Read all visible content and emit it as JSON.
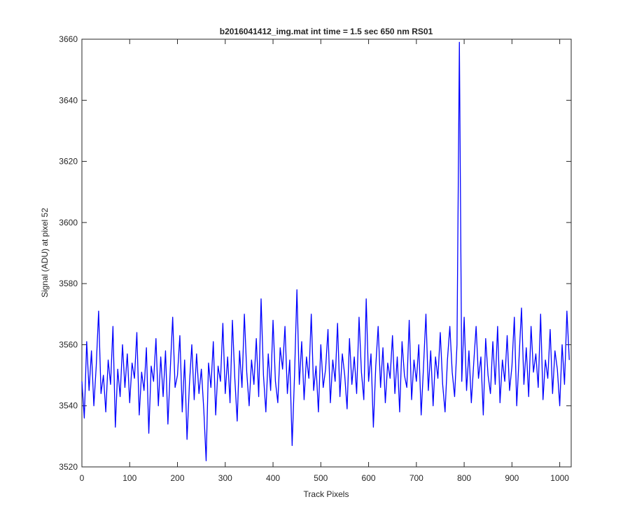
{
  "chart_data": {
    "type": "line",
    "title": "b2016041412_img.mat int time = 1.5 sec  650 nm RS01",
    "xlabel": "Track Pixels",
    "ylabel": "Signal (ADU) at pixel 52",
    "x": [
      0,
      5,
      10,
      15,
      20,
      25,
      30,
      35,
      40,
      45,
      50,
      55,
      60,
      65,
      70,
      75,
      80,
      85,
      90,
      95,
      100,
      105,
      110,
      115,
      120,
      125,
      130,
      135,
      140,
      145,
      150,
      155,
      160,
      165,
      170,
      175,
      180,
      185,
      190,
      195,
      200,
      205,
      210,
      215,
      220,
      225,
      230,
      235,
      240,
      245,
      250,
      255,
      260,
      265,
      270,
      275,
      280,
      285,
      290,
      295,
      300,
      305,
      310,
      315,
      320,
      325,
      330,
      335,
      340,
      345,
      350,
      355,
      360,
      365,
      370,
      375,
      380,
      385,
      390,
      395,
      400,
      405,
      410,
      415,
      420,
      425,
      430,
      435,
      440,
      445,
      450,
      455,
      460,
      465,
      470,
      475,
      480,
      485,
      490,
      495,
      500,
      505,
      510,
      515,
      520,
      525,
      530,
      535,
      540,
      545,
      550,
      555,
      560,
      565,
      570,
      575,
      580,
      585,
      590,
      595,
      600,
      605,
      610,
      615,
      620,
      625,
      630,
      635,
      640,
      645,
      650,
      655,
      660,
      665,
      670,
      675,
      680,
      685,
      690,
      695,
      700,
      705,
      710,
      715,
      720,
      725,
      730,
      735,
      740,
      745,
      750,
      755,
      760,
      765,
      770,
      775,
      780,
      785,
      790,
      795,
      800,
      805,
      810,
      815,
      820,
      825,
      830,
      835,
      840,
      845,
      850,
      855,
      860,
      865,
      870,
      875,
      880,
      885,
      890,
      895,
      900,
      905,
      910,
      915,
      920,
      925,
      930,
      935,
      940,
      945,
      950,
      955,
      960,
      965,
      970,
      975,
      980,
      985,
      990,
      995,
      1000,
      1005,
      1010,
      1015,
      1020
    ],
    "series": [
      {
        "color": "#0000ff",
        "values": [
          3548,
          3536,
          3561,
          3545,
          3558,
          3540,
          3553,
          3571,
          3544,
          3550,
          3538,
          3555,
          3547,
          3566,
          3533,
          3552,
          3543,
          3560,
          3546,
          3557,
          3541,
          3554,
          3549,
          3564,
          3537,
          3551,
          3545,
          3559,
          3531,
          3553,
          3548,
          3562,
          3540,
          3556,
          3543,
          3558,
          3534,
          3552,
          3569,
          3546,
          3550,
          3563,
          3538,
          3555,
          3529,
          3547,
          3560,
          3542,
          3557,
          3544,
          3552,
          3539,
          3522,
          3554,
          3546,
          3561,
          3537,
          3553,
          3548,
          3567,
          3544,
          3556,
          3541,
          3568,
          3549,
          3535,
          3558,
          3546,
          3570,
          3551,
          3540,
          3555,
          3547,
          3562,
          3543,
          3575,
          3550,
          3538,
          3557,
          3545,
          3568,
          3548,
          3541,
          3559,
          3552,
          3566,
          3544,
          3555,
          3527,
          3550,
          3578,
          3547,
          3561,
          3542,
          3556,
          3549,
          3570,
          3545,
          3553,
          3538,
          3560,
          3546,
          3552,
          3565,
          3541,
          3555,
          3548,
          3567,
          3543,
          3557,
          3550,
          3539,
          3562,
          3547,
          3556,
          3544,
          3569,
          3551,
          3542,
          3575,
          3548,
          3557,
          3533,
          3553,
          3566,
          3546,
          3559,
          3541,
          3554,
          3549,
          3563,
          3544,
          3556,
          3538,
          3561,
          3550,
          3546,
          3568,
          3542,
          3555,
          3548,
          3560,
          3537,
          3553,
          3570,
          3545,
          3558,
          3540,
          3556,
          3549,
          3564,
          3547,
          3538,
          3555,
          3566,
          3551,
          3543,
          3560,
          3659,
          3548,
          3569,
          3545,
          3558,
          3541,
          3554,
          3566,
          3549,
          3556,
          3537,
          3562,
          3550,
          3544,
          3561,
          3547,
          3566,
          3541,
          3555,
          3548,
          3563,
          3545,
          3553,
          3569,
          3540,
          3556,
          3572,
          3547,
          3559,
          3543,
          3566,
          3551,
          3557,
          3546,
          3570,
          3542,
          3555,
          3549,
          3565,
          3544,
          3558,
          3552,
          3540,
          3560,
          3547,
          3571,
          3555
        ]
      }
    ],
    "xlim": [
      0,
      1024
    ],
    "xticks": [
      0,
      100,
      200,
      300,
      400,
      500,
      600,
      700,
      800,
      900,
      1000
    ],
    "ylim": [
      3520,
      3660
    ],
    "yticks": [
      3520,
      3540,
      3560,
      3580,
      3600,
      3620,
      3640,
      3660
    ]
  }
}
